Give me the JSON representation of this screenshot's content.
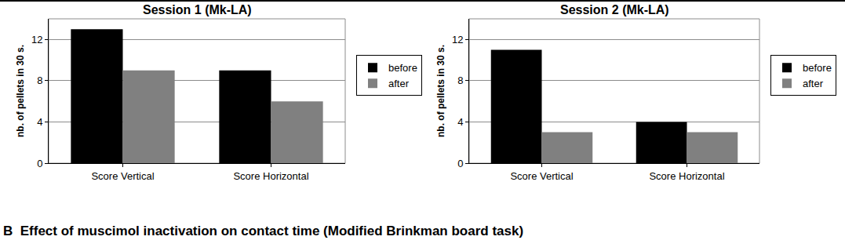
{
  "chart_data": [
    {
      "type": "bar",
      "title": "Session 1 (Mk-LA)",
      "y_label": "nb. of pellets in 30 s.",
      "categories": [
        "Score Vertical",
        "Score Horizontal"
      ],
      "series": [
        {
          "name": "before",
          "color": "#000000",
          "values": [
            13,
            9
          ]
        },
        {
          "name": "after",
          "color": "#808080",
          "values": [
            9,
            6
          ]
        }
      ],
      "ylim": [
        0,
        14
      ],
      "yticks": [
        0,
        4,
        8,
        12
      ],
      "grid": true,
      "legend": "right"
    },
    {
      "type": "bar",
      "title": "Session 2 (Mk-LA)",
      "y_label": "nb. of pellets in 30 s.",
      "categories": [
        "Score Vertical",
        "Score Horizontal"
      ],
      "series": [
        {
          "name": "before",
          "color": "#000000",
          "values": [
            11,
            4
          ]
        },
        {
          "name": "after",
          "color": "#808080",
          "values": [
            3,
            3
          ]
        }
      ],
      "ylim": [
        0,
        14
      ],
      "yticks": [
        0,
        4,
        8,
        12
      ],
      "grid": true,
      "legend": "right"
    }
  ],
  "caption": {
    "label": "B",
    "text": "Effect of muscimol inactivation on contact time (Modified Brinkman board task)"
  }
}
